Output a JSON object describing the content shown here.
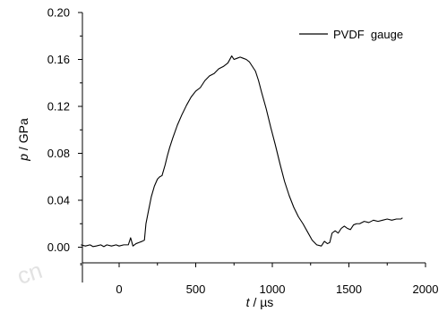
{
  "chart_data": {
    "type": "line",
    "title": "",
    "xlabel": {
      "var": "t",
      "sep": " / ",
      "unit": "µs"
    },
    "ylabel": {
      "var": "p",
      "sep": " / ",
      "unit": "GPa"
    },
    "xlim": [
      -250,
      2000
    ],
    "ylim": [
      -0.005,
      0.2
    ],
    "x_ticks": [
      0,
      500,
      1000,
      1500,
      2000
    ],
    "x_tick_labels": [
      "0",
      "500",
      "1000",
      "1500",
      "2000"
    ],
    "y_ticks": [
      0.0,
      0.04,
      0.08,
      0.12,
      0.16,
      0.2
    ],
    "y_tick_labels": [
      "0.00",
      "0.04",
      "0.08",
      "0.12",
      "0.16",
      "0.20"
    ],
    "grid": false,
    "legend_position": "top-right",
    "series": [
      {
        "name": "PVDF  gauge",
        "color": "#000000",
        "x": [
          -250,
          -220,
          -190,
          -170,
          -150,
          -120,
          -100,
          -80,
          -50,
          -20,
          0,
          30,
          60,
          75,
          90,
          110,
          130,
          150,
          165,
          175,
          190,
          210,
          230,
          250,
          265,
          280,
          300,
          315,
          330,
          350,
          380,
          410,
          440,
          470,
          500,
          530,
          560,
          590,
          620,
          650,
          680,
          710,
          735,
          750,
          770,
          790,
          810,
          830,
          850,
          870,
          890,
          910,
          930,
          960,
          990,
          1020,
          1050,
          1080,
          1110,
          1140,
          1170,
          1200,
          1230,
          1260,
          1290,
          1320,
          1340,
          1360,
          1375,
          1390,
          1410,
          1430,
          1450,
          1470,
          1490,
          1510,
          1530,
          1550,
          1570,
          1600,
          1630,
          1660,
          1690,
          1720,
          1750,
          1780,
          1810,
          1840,
          1850
        ],
        "y": [
          0.002,
          0.001,
          0.002,
          0.0005,
          0.001,
          0.002,
          0.0005,
          0.002,
          0.001,
          0.002,
          0.001,
          0.002,
          0.002,
          0.008,
          0.001,
          0.003,
          0.004,
          0.005,
          0.006,
          0.02,
          0.03,
          0.043,
          0.052,
          0.058,
          0.06,
          0.061,
          0.07,
          0.078,
          0.085,
          0.093,
          0.104,
          0.113,
          0.121,
          0.128,
          0.133,
          0.136,
          0.142,
          0.146,
          0.148,
          0.152,
          0.154,
          0.157,
          0.163,
          0.16,
          0.161,
          0.162,
          0.161,
          0.16,
          0.158,
          0.154,
          0.15,
          0.142,
          0.132,
          0.118,
          0.102,
          0.087,
          0.071,
          0.056,
          0.044,
          0.034,
          0.026,
          0.02,
          0.013,
          0.006,
          0.002,
          0.001,
          0.005,
          0.003,
          0.004,
          0.012,
          0.014,
          0.012,
          0.016,
          0.018,
          0.016,
          0.015,
          0.019,
          0.02,
          0.02,
          0.022,
          0.021,
          0.023,
          0.022,
          0.023,
          0.024,
          0.023,
          0.024,
          0.024,
          0.025
        ]
      }
    ]
  },
  "watermark": {
    "text": "cn"
  }
}
